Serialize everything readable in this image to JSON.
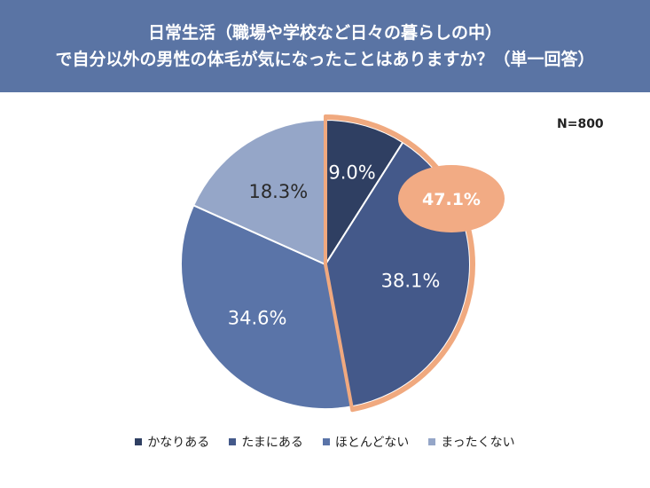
{
  "header": {
    "line1": "日常生活（職場や学校など日々の暮らしの中）",
    "line2": "で自分以外の男性の体毛が気になったことはありますか？（単一回答）"
  },
  "n_label": "N=800",
  "chart_data": {
    "type": "pie",
    "categories": [
      "かなりある",
      "たまにある",
      "ほとんどない",
      "まったくない"
    ],
    "values": [
      9.0,
      38.1,
      34.6,
      18.3
    ],
    "labels": [
      "9.0%",
      "38.1%",
      "34.6%",
      "18.3%"
    ],
    "colors": [
      "#2f3f62",
      "#44598a",
      "#5a74a8",
      "#95a6c8"
    ],
    "start": "12 o'clock, clockwise",
    "highlight": {
      "slices": [
        0,
        1
      ],
      "label": "47.1%",
      "outline_color": "#f0a97f",
      "bubble_color": "#f2ab84"
    },
    "legend_position": "bottom"
  }
}
